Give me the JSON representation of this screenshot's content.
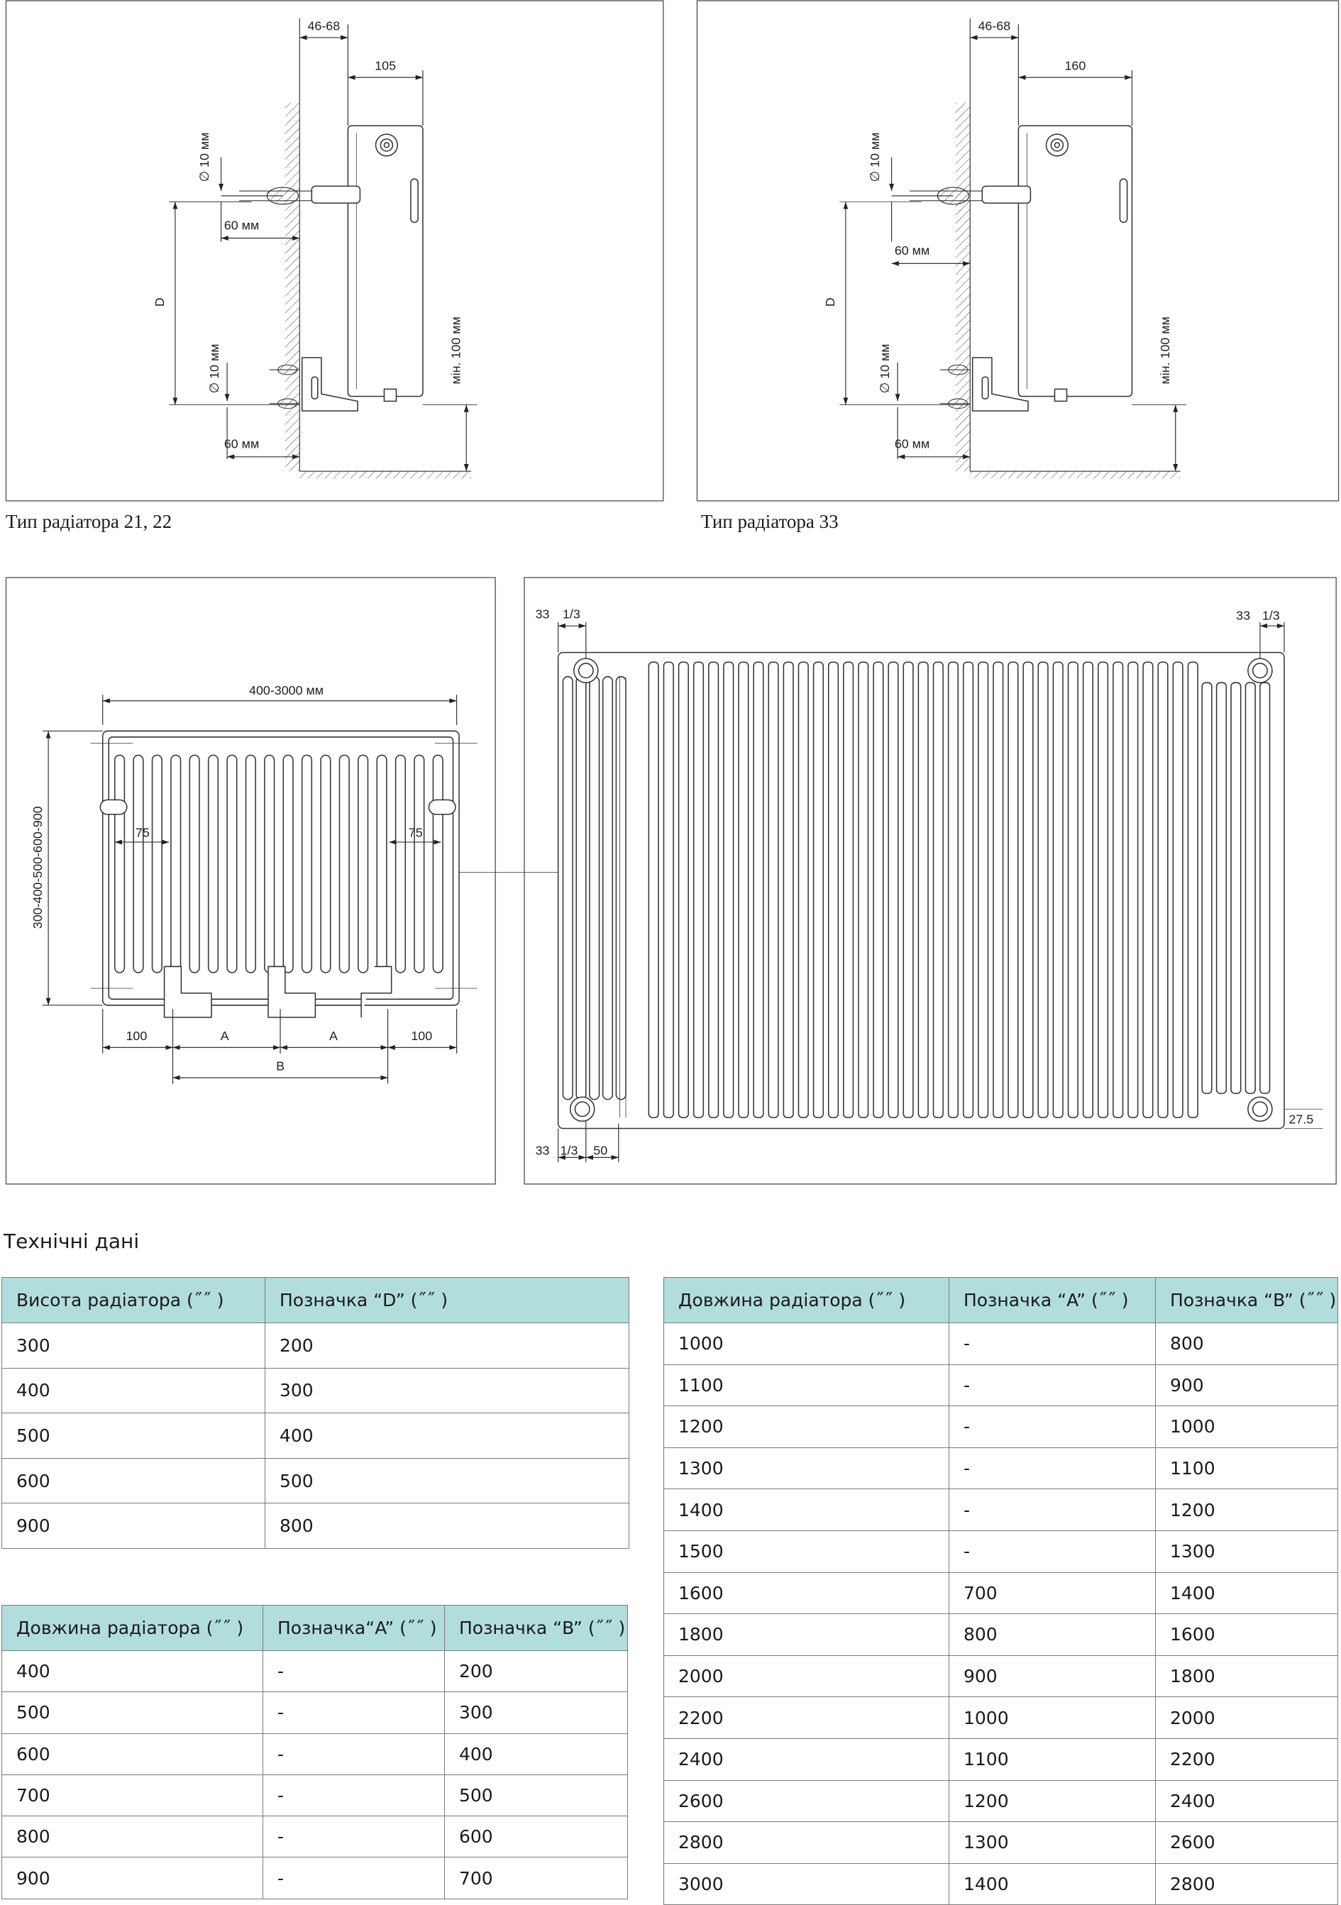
{
  "drawings": [
    {
      "caption": "Тип радіатора 21, 22",
      "labels": [
        "46-68",
        "105",
        "∅ 10 мм",
        "60 мм",
        "D",
        "∅ 10 мм",
        "60 мм",
        "мін. 100 мм"
      ]
    },
    {
      "caption": "Тип радіатора 33",
      "labels": [
        "46-68",
        "160",
        "∅ 10 мм",
        "60 мм",
        "D",
        "∅ 10 мм",
        "60 мм",
        "мін. 100 мм"
      ]
    },
    {
      "labels": [
        "400-3000 мм",
        "300-400-500-600-900",
        "75",
        "75",
        "100",
        "A",
        "A",
        "100",
        "B"
      ]
    },
    {
      "labels": [
        "33",
        "1/3",
        "33",
        "1/3",
        "27.5",
        "33",
        "1/3",
        "50"
      ]
    }
  ],
  "section_title": "Технічні дані",
  "tables": [
    {
      "header": [
        "Висота радіатора (˝˝ )",
        "Позначка “D” (˝˝ )"
      ],
      "rows": [
        [
          "300",
          "200"
        ],
        [
          "400",
          "300"
        ],
        [
          "500",
          "400"
        ],
        [
          "600",
          "500"
        ],
        [
          "900",
          "800"
        ]
      ]
    },
    {
      "header": [
        "Довжина радіатора (˝˝ )",
        "Позначка“A” (˝˝ )",
        "Позначка “B” (˝˝ )"
      ],
      "rows": [
        [
          "400",
          "-",
          "200"
        ],
        [
          "500",
          "-",
          "300"
        ],
        [
          "600",
          "-",
          "400"
        ],
        [
          "700",
          "-",
          "500"
        ],
        [
          "800",
          "-",
          "600"
        ],
        [
          "900",
          "-",
          "700"
        ]
      ]
    },
    {
      "header": [
        "Довжина радіатора (˝˝ )",
        "Позначка “A” (˝˝ )",
        "Позначка “B” (˝˝ )"
      ],
      "rows": [
        [
          "1000",
          "-",
          "800"
        ],
        [
          "1100",
          "-",
          "900"
        ],
        [
          "1200",
          "-",
          "1000"
        ],
        [
          "1300",
          "-",
          "1100"
        ],
        [
          "1400",
          "-",
          "1200"
        ],
        [
          "1500",
          "-",
          "1300"
        ],
        [
          "1600",
          "700",
          "1400"
        ],
        [
          "1800",
          "800",
          "1600"
        ],
        [
          "2000",
          "900",
          "1800"
        ],
        [
          "2200",
          "1000",
          "2000"
        ],
        [
          "2400",
          "1100",
          "2200"
        ],
        [
          "2600",
          "1200",
          "2400"
        ],
        [
          "2800",
          "1300",
          "2600"
        ],
        [
          "3000",
          "1400",
          "2800"
        ]
      ]
    }
  ]
}
